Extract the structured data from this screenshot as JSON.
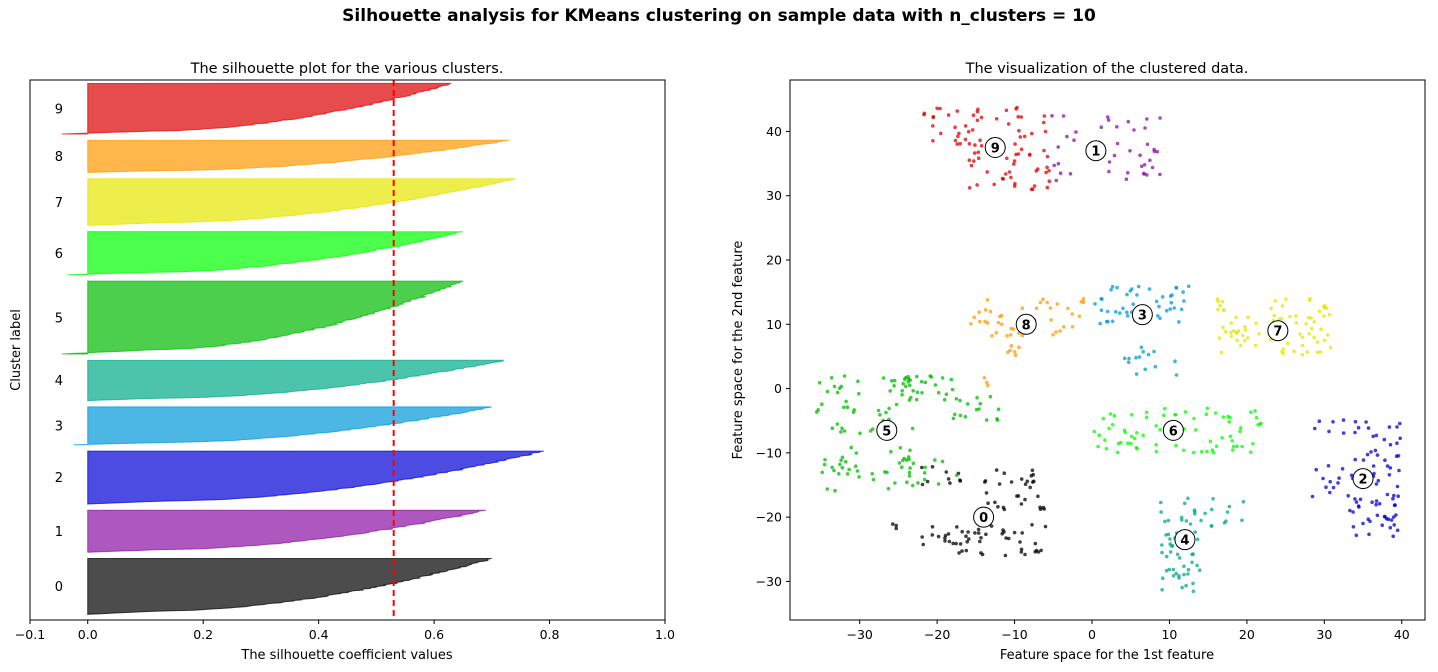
{
  "suptitle": "Silhouette analysis for KMeans clustering on sample data with n_clusters = 10",
  "chart_data": [
    {
      "type": "area",
      "title": "The silhouette plot for the various clusters.",
      "xlabel": "The silhouette coefficient values",
      "ylabel": "Cluster label",
      "xlim": [
        -0.1,
        1.0
      ],
      "xticks": [
        -0.1,
        0.0,
        0.2,
        0.4,
        0.6,
        0.8,
        1.0
      ],
      "xtick_labels": [
        "−0.1",
        "0.0",
        "0.2",
        "0.4",
        "0.6",
        "0.8",
        "1.0"
      ],
      "ylim": [
        0,
        940
      ],
      "average_silhouette": 0.53,
      "average_line_color": "#ff0000",
      "clusters": [
        {
          "label": "0",
          "size": 98,
          "max": 0.7,
          "min": 0.0,
          "color": "#000000"
        },
        {
          "label": "1",
          "size": 74,
          "max": 0.69,
          "min": 0.0,
          "color": "#8c0fa3"
        },
        {
          "label": "2",
          "size": 93,
          "max": 0.79,
          "min": 0.0,
          "color": "#0000d6"
        },
        {
          "label": "3",
          "size": 67,
          "max": 0.7,
          "min": -0.025,
          "color": "#0098d9"
        },
        {
          "label": "4",
          "size": 71,
          "max": 0.72,
          "min": 0.0,
          "color": "#00aa88"
        },
        {
          "label": "5",
          "size": 128,
          "max": 0.65,
          "min": -0.045,
          "color": "#00bb00"
        },
        {
          "label": "6",
          "size": 76,
          "max": 0.65,
          "min": -0.035,
          "color": "#00ff00"
        },
        {
          "label": "7",
          "size": 82,
          "max": 0.74,
          "min": 0.0,
          "color": "#e6e600"
        },
        {
          "label": "8",
          "size": 57,
          "max": 0.73,
          "min": 0.0,
          "color": "#ff9900"
        },
        {
          "label": "9",
          "size": 89,
          "max": 0.63,
          "min": -0.045,
          "color": "#dd0000"
        }
      ]
    },
    {
      "type": "scatter",
      "title": "The visualization of the clustered data.",
      "xlabel": "Feature space for the 1st feature",
      "ylabel": "Feature space for the 2nd feature",
      "xlim": [
        -39,
        43
      ],
      "ylim": [
        -36,
        48
      ],
      "xticks": [
        -30,
        -20,
        -10,
        0,
        10,
        20,
        30,
        40
      ],
      "xtick_labels": [
        "−30",
        "−20",
        "−10",
        "0",
        "10",
        "20",
        "30",
        "40"
      ],
      "yticks": [
        -30,
        -20,
        -10,
        0,
        10,
        20,
        30,
        40
      ],
      "ytick_labels": [
        "−30",
        "−20",
        "−10",
        "0",
        "10",
        "20",
        "30",
        "40"
      ],
      "centers": [
        {
          "label": "0",
          "x": -14,
          "y": -20
        },
        {
          "label": "1",
          "x": 0.5,
          "y": 37
        },
        {
          "label": "2",
          "x": 35,
          "y": -14
        },
        {
          "label": "3",
          "x": 6.5,
          "y": 11.5
        },
        {
          "label": "4",
          "x": 12,
          "y": -23.5
        },
        {
          "label": "5",
          "x": -26.5,
          "y": -6.5
        },
        {
          "label": "6",
          "x": 10.5,
          "y": -6.5
        },
        {
          "label": "7",
          "x": 24,
          "y": 9
        },
        {
          "label": "8",
          "x": -8.5,
          "y": 10
        },
        {
          "label": "9",
          "x": -12.5,
          "y": 37.5
        }
      ],
      "point_groups": [
        {
          "cluster": 0,
          "count": 50,
          "x": [
            -22,
            -6
          ],
          "y": [
            -26,
            -21
          ]
        },
        {
          "cluster": 0,
          "count": 30,
          "x": [
            -14,
            -6
          ],
          "y": [
            -19,
            -12
          ]
        },
        {
          "cluster": 0,
          "count": 10,
          "x": [
            -22,
            -17
          ],
          "y": [
            -15,
            -12
          ]
        },
        {
          "cluster": 0,
          "count": 3,
          "x": [
            -26,
            -25
          ],
          "y": [
            -22,
            -21
          ]
        },
        {
          "cluster": 1,
          "count": 40,
          "x": [
            -6,
            9
          ],
          "y": [
            32,
            43
          ]
        },
        {
          "cluster": 2,
          "count": 70,
          "x": [
            33,
            40
          ],
          "y": [
            -23,
            -5
          ]
        },
        {
          "cluster": 2,
          "count": 14,
          "x": [
            28,
            34
          ],
          "y": [
            -18,
            -12
          ]
        },
        {
          "cluster": 2,
          "count": 6,
          "x": [
            28,
            33
          ],
          "y": [
            -7,
            -4
          ]
        },
        {
          "cluster": 3,
          "count": 45,
          "x": [
            0,
            13
          ],
          "y": [
            10,
            16
          ]
        },
        {
          "cluster": 3,
          "count": 14,
          "x": [
            4,
            11
          ],
          "y": [
            2,
            7
          ]
        },
        {
          "cluster": 4,
          "count": 45,
          "x": [
            9,
            14
          ],
          "y": [
            -32,
            -22
          ]
        },
        {
          "cluster": 4,
          "count": 25,
          "x": [
            8,
            20
          ],
          "y": [
            -22,
            -17
          ]
        },
        {
          "cluster": 5,
          "count": 50,
          "x": [
            -36,
            -23
          ],
          "y": [
            -7,
            2
          ]
        },
        {
          "cluster": 5,
          "count": 40,
          "x": [
            -35,
            -23
          ],
          "y": [
            -16,
            -9
          ]
        },
        {
          "cluster": 5,
          "count": 25,
          "x": [
            -25,
            -17
          ],
          "y": [
            -2,
            2
          ]
        },
        {
          "cluster": 5,
          "count": 15,
          "x": [
            -19,
            -12
          ],
          "y": [
            -5,
            -1
          ]
        },
        {
          "cluster": 5,
          "count": 10,
          "x": [
            -24,
            -17
          ],
          "y": [
            -15,
            -11
          ]
        },
        {
          "cluster": 6,
          "count": 75,
          "x": [
            0,
            22
          ],
          "y": [
            -10,
            -3
          ]
        },
        {
          "cluster": 7,
          "count": 30,
          "x": [
            16,
            22
          ],
          "y": [
            5,
            14
          ]
        },
        {
          "cluster": 7,
          "count": 50,
          "x": [
            23,
            31
          ],
          "y": [
            5,
            14
          ]
        },
        {
          "cluster": 8,
          "count": 45,
          "x": [
            -16,
            -1
          ],
          "y": [
            8,
            14
          ]
        },
        {
          "cluster": 8,
          "count": 6,
          "x": [
            -11,
            -9
          ],
          "y": [
            5,
            7
          ]
        },
        {
          "cluster": 8,
          "count": 3,
          "x": [
            -14,
            -13
          ],
          "y": [
            0,
            2
          ]
        },
        {
          "cluster": 9,
          "count": 45,
          "x": [
            -22,
            -6
          ],
          "y": [
            38,
            44
          ]
        },
        {
          "cluster": 9,
          "count": 40,
          "x": [
            -17,
            -5
          ],
          "y": [
            31,
            38
          ]
        }
      ]
    }
  ]
}
